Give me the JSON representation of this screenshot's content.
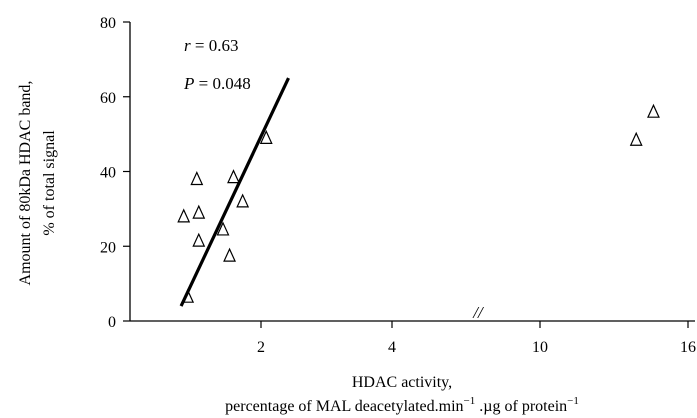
{
  "chart_data": {
    "type": "scatter",
    "ylabel_lines": [
      "Amount of 80kDa HDAC band,",
      "% of total signal"
    ],
    "xlabel_lines": [
      "HDAC activity,",
      "percentage of MAL deacetylated.min",
      "−1",
      " .µg of protein",
      "−1"
    ],
    "y_ticks": [
      0,
      20,
      40,
      60,
      80
    ],
    "ylim": [
      0,
      80
    ],
    "x_ticks": [
      "2",
      "4",
      "10",
      "16"
    ],
    "x_break": "//",
    "x_segments": [
      {
        "domain": [
          0,
          5
        ],
        "ticks": [
          2,
          4
        ]
      },
      {
        "domain": [
          7,
          16
        ],
        "ticks": [
          10,
          16
        ]
      }
    ],
    "marker": "open-triangle",
    "points": [
      {
        "x": 0.82,
        "y": 28
      },
      {
        "x": 0.88,
        "y": 6.5
      },
      {
        "x": 1.02,
        "y": 38
      },
      {
        "x": 1.05,
        "y": 29
      },
      {
        "x": 1.05,
        "y": 21.5
      },
      {
        "x": 1.42,
        "y": 24.5
      },
      {
        "x": 1.52,
        "y": 17.5
      },
      {
        "x": 1.58,
        "y": 38.5
      },
      {
        "x": 1.72,
        "y": 32
      },
      {
        "x": 2.08,
        "y": 49
      },
      {
        "x": 13.9,
        "y": 48.5
      },
      {
        "x": 14.6,
        "y": 56
      }
    ],
    "regression_line": {
      "x": [
        0.78,
        2.42
      ],
      "y": [
        4,
        65
      ]
    },
    "annotations": {
      "r_symbol": "r",
      "r_value": " = 0.63",
      "p_symbol": "P",
      "p_value": " = 0.048"
    }
  }
}
